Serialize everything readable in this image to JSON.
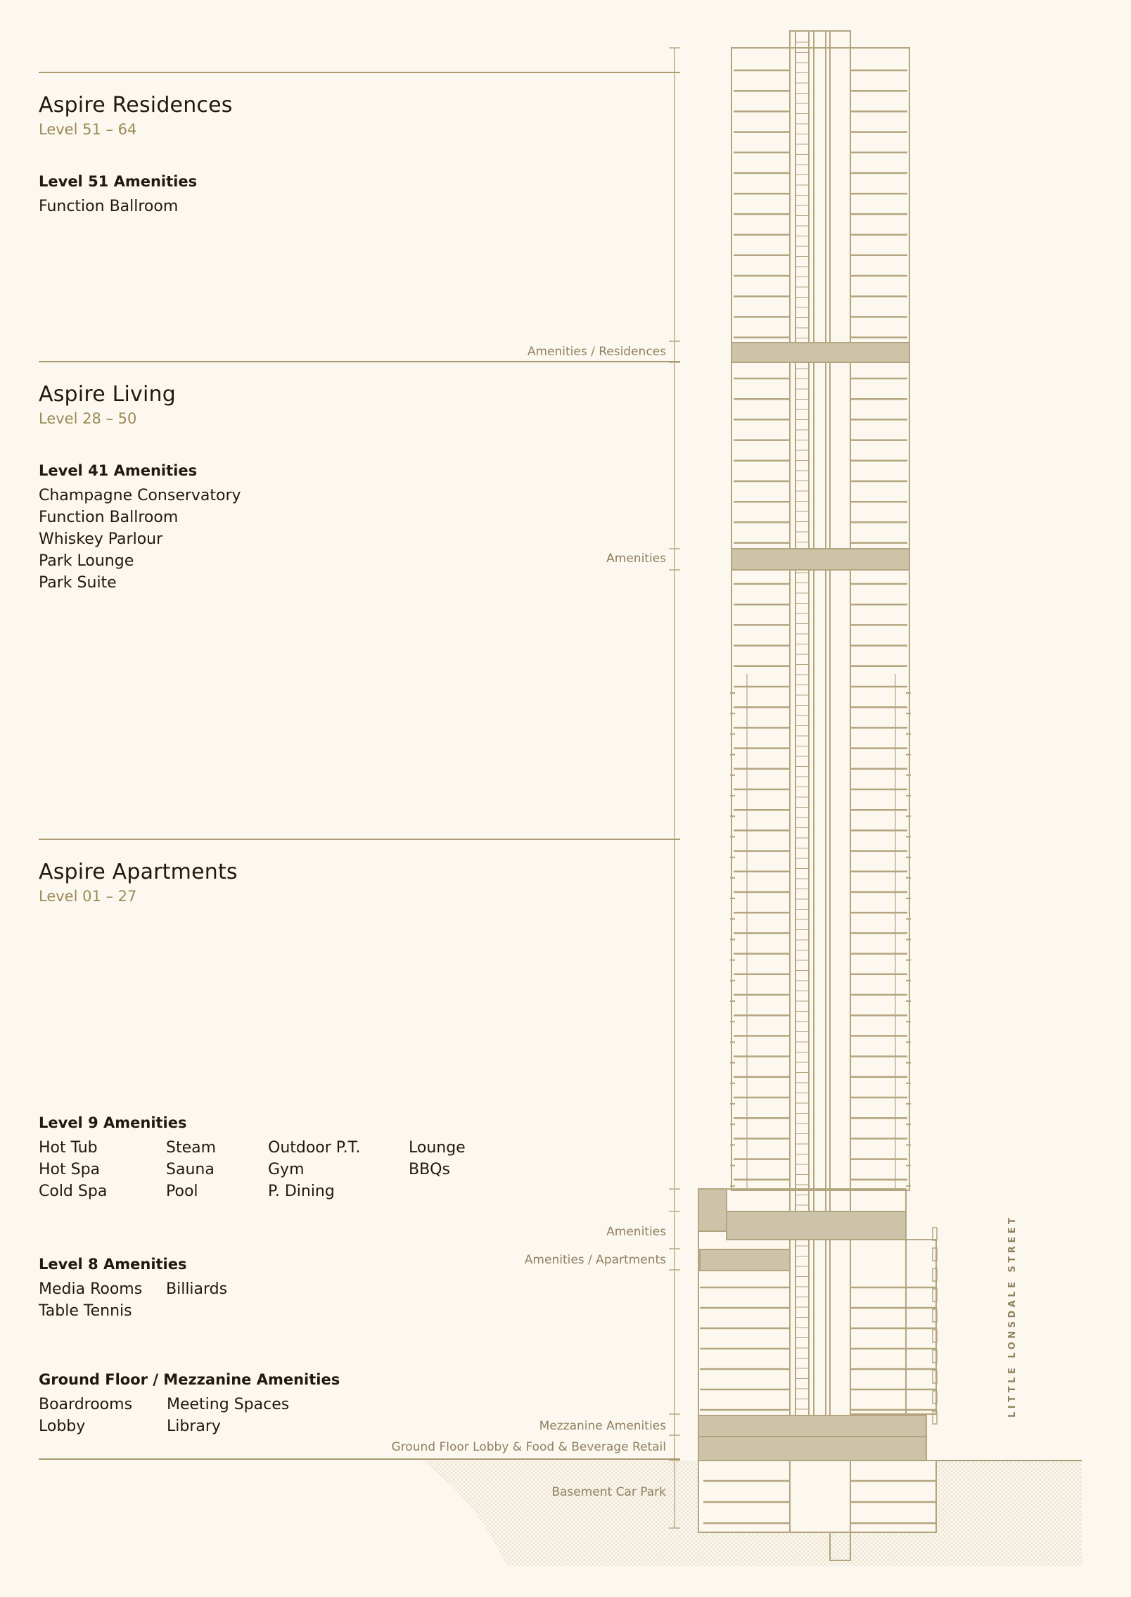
{
  "sections": [
    {
      "title": "Aspire Residences",
      "range": "Level 51 – 64"
    },
    {
      "title": "Aspire Living",
      "range": "Level 28 – 50"
    },
    {
      "title": "Aspire Apartments",
      "range": "Level 01 – 27"
    }
  ],
  "amenities": {
    "level51": {
      "title": "Level 51 Amenities",
      "items": [
        "Function Ballroom"
      ]
    },
    "level41": {
      "title": "Level 41 Amenities",
      "items": [
        "Champagne Conservatory",
        "Function Ballroom",
        "Whiskey Parlour",
        "Park Lounge",
        "Park Suite"
      ]
    },
    "level9": {
      "title": "Level 9 Amenities",
      "items": [
        "Hot Tub",
        "Steam",
        "Outdoor P.T.",
        "Lounge",
        "Hot Spa",
        "Sauna",
        "Gym",
        "BBQs",
        "Cold Spa",
        "Pool",
        "P. Dining",
        ""
      ]
    },
    "level8": {
      "title": "Level 8 Amenities",
      "items": [
        "Media Rooms",
        "Billiards",
        "Table Tennis",
        ""
      ]
    },
    "ground": {
      "title": "Ground Floor / Mezzanine Amenities",
      "items": [
        "Boardrooms",
        "Meeting Spaces",
        "Lobby",
        "Library"
      ]
    }
  },
  "tower_labels": {
    "amenities_residences": "Amenities / Residences",
    "amenities_41": "Amenities",
    "amenities_9": "Amenities",
    "amenities_apartments": "Amenities / Apartments",
    "mezzanine": "Mezzanine Amenities",
    "ground_floor": "Ground Floor Lobby & Food & Beverage Retail",
    "basement": "Basement Car Park"
  },
  "street_name": "LITTLE LONSDALE STREET",
  "colors": {
    "background": "#fdf8ef",
    "accent": "#9a8a55",
    "line": "#a99a72",
    "amenity_band": "#ccc3a8"
  }
}
